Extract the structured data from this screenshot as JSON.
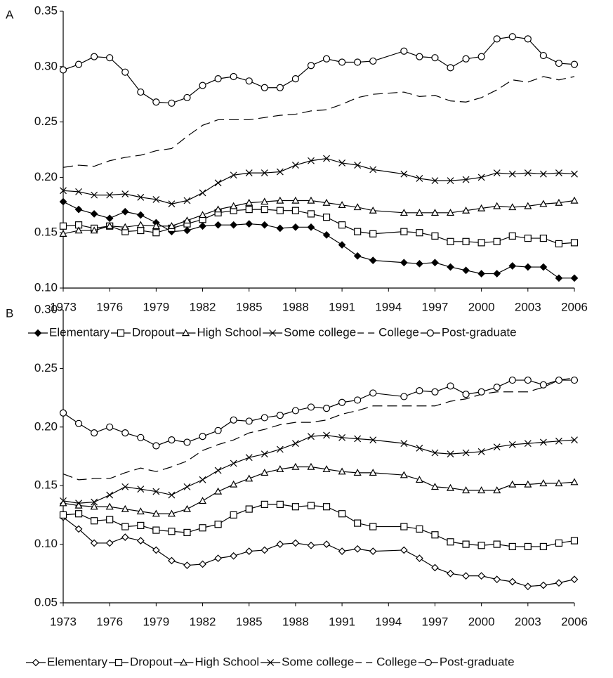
{
  "chart_data": [
    {
      "type": "line",
      "label": "A",
      "x": [
        1973,
        1974,
        1975,
        1976,
        1977,
        1978,
        1979,
        1980,
        1981,
        1982,
        1983,
        1984,
        1985,
        1986,
        1987,
        1988,
        1989,
        1990,
        1991,
        1992,
        1993,
        1995,
        1996,
        1997,
        1998,
        1999,
        2000,
        2001,
        2002,
        2003,
        2004,
        2005,
        2006
      ],
      "xlim": [
        1973,
        2006
      ],
      "xticks": [
        1973,
        1976,
        1979,
        1982,
        1985,
        1988,
        1991,
        1994,
        1997,
        2000,
        2003,
        2006
      ],
      "ylim": [
        0.1,
        0.35
      ],
      "yticks": [
        {
          "value": 0.1,
          "label": "0.10"
        },
        {
          "value": 0.15,
          "label": "0.15"
        },
        {
          "value": 0.2,
          "label": "0.20"
        },
        {
          "value": 0.25,
          "label": "0.25"
        },
        {
          "value": 0.3,
          "label": "0.30"
        },
        {
          "value": 0.35,
          "label": "0.35"
        }
      ],
      "grid": false,
      "legend": "bottom",
      "series": [
        {
          "name": "Elementary",
          "color": "#000000",
          "marker": "diamond-filled",
          "dash": "solid",
          "values": [
            0.178,
            0.171,
            0.167,
            0.163,
            0.169,
            0.166,
            0.159,
            0.151,
            0.152,
            0.156,
            0.157,
            0.157,
            0.158,
            0.157,
            0.154,
            0.155,
            0.155,
            0.148,
            0.139,
            0.129,
            0.125,
            0.123,
            0.122,
            0.123,
            0.119,
            0.116,
            0.113,
            0.113,
            0.12,
            0.119,
            0.119,
            0.109,
            0.109
          ]
        },
        {
          "name": "Dropout",
          "color": "#000000",
          "marker": "square",
          "dash": "solid",
          "values": [
            0.156,
            0.157,
            0.154,
            0.156,
            0.151,
            0.152,
            0.15,
            0.154,
            0.158,
            0.162,
            0.168,
            0.17,
            0.171,
            0.171,
            0.17,
            0.17,
            0.167,
            0.164,
            0.157,
            0.151,
            0.149,
            0.151,
            0.15,
            0.147,
            0.142,
            0.142,
            0.141,
            0.142,
            0.147,
            0.145,
            0.145,
            0.14,
            0.141
          ]
        },
        {
          "name": "High School",
          "color": "#000000",
          "marker": "triangle",
          "dash": "solid",
          "values": [
            0.149,
            0.152,
            0.152,
            0.156,
            0.155,
            0.157,
            0.156,
            0.156,
            0.161,
            0.166,
            0.171,
            0.174,
            0.177,
            0.178,
            0.179,
            0.179,
            0.179,
            0.177,
            0.175,
            0.173,
            0.17,
            0.168,
            0.168,
            0.168,
            0.168,
            0.17,
            0.172,
            0.174,
            0.173,
            0.174,
            0.176,
            0.177,
            0.179
          ]
        },
        {
          "name": "Some college",
          "color": "#000000",
          "marker": "x",
          "dash": "solid",
          "values": [
            0.188,
            0.187,
            0.184,
            0.184,
            0.185,
            0.182,
            0.18,
            0.176,
            0.179,
            0.186,
            0.195,
            0.202,
            0.204,
            0.204,
            0.205,
            0.211,
            0.215,
            0.217,
            0.213,
            0.211,
            0.207,
            0.203,
            0.199,
            0.197,
            0.197,
            0.198,
            0.2,
            0.204,
            0.203,
            0.204,
            0.203,
            0.204,
            0.203
          ]
        },
        {
          "name": "College",
          "color": "#000000",
          "marker": "none",
          "dash": "dashed",
          "values": [
            0.209,
            0.211,
            0.21,
            0.215,
            0.218,
            0.22,
            0.224,
            0.226,
            0.237,
            0.247,
            0.252,
            0.252,
            0.252,
            0.254,
            0.256,
            0.257,
            0.26,
            0.261,
            0.266,
            0.272,
            0.275,
            0.277,
            0.273,
            0.274,
            0.269,
            0.268,
            0.272,
            0.279,
            0.288,
            0.286,
            0.291,
            0.288,
            0.291
          ]
        },
        {
          "name": "Post-graduate",
          "color": "#000000",
          "marker": "circle",
          "dash": "solid",
          "values": [
            0.297,
            0.302,
            0.309,
            0.308,
            0.295,
            0.277,
            0.268,
            0.267,
            0.272,
            0.283,
            0.289,
            0.291,
            0.287,
            0.281,
            0.281,
            0.289,
            0.301,
            0.307,
            0.304,
            0.304,
            0.305,
            0.314,
            0.309,
            0.308,
            0.299,
            0.307,
            0.309,
            0.325,
            0.327,
            0.325,
            0.31,
            0.303,
            0.302
          ]
        }
      ]
    },
    {
      "type": "line",
      "label": "B",
      "x": [
        1973,
        1974,
        1975,
        1976,
        1977,
        1978,
        1979,
        1980,
        1981,
        1982,
        1983,
        1984,
        1985,
        1986,
        1987,
        1988,
        1989,
        1990,
        1991,
        1992,
        1993,
        1995,
        1996,
        1997,
        1998,
        1999,
        2000,
        2001,
        2002,
        2003,
        2004,
        2005,
        2006
      ],
      "xlim": [
        1973,
        2006
      ],
      "xticks": [
        1973,
        1976,
        1979,
        1982,
        1985,
        1988,
        1991,
        1994,
        1997,
        2000,
        2003,
        2006
      ],
      "ylim": [
        0.05,
        0.3
      ],
      "yticks": [
        {
          "value": 0.05,
          "label": "0.05"
        },
        {
          "value": 0.1,
          "label": "0.10"
        },
        {
          "value": 0.15,
          "label": "0.15"
        },
        {
          "value": 0.2,
          "label": "0.20"
        },
        {
          "value": 0.25,
          "label": "0.25"
        },
        {
          "value": 0.3,
          "label": "0.30"
        }
      ],
      "grid": false,
      "legend": "bottom",
      "series": [
        {
          "name": "Elementary",
          "color": "#000000",
          "marker": "diamond",
          "dash": "solid",
          "values": [
            0.123,
            0.113,
            0.101,
            0.101,
            0.106,
            0.103,
            0.095,
            0.086,
            0.082,
            0.083,
            0.088,
            0.09,
            0.094,
            0.095,
            0.1,
            0.101,
            0.099,
            0.1,
            0.094,
            0.096,
            0.094,
            0.095,
            0.088,
            0.08,
            0.075,
            0.073,
            0.073,
            0.07,
            0.068,
            0.064,
            0.065,
            0.067,
            0.07
          ]
        },
        {
          "name": "Dropout",
          "color": "#000000",
          "marker": "square",
          "dash": "solid",
          "values": [
            0.125,
            0.126,
            0.12,
            0.121,
            0.115,
            0.116,
            0.112,
            0.111,
            0.11,
            0.114,
            0.117,
            0.125,
            0.13,
            0.134,
            0.134,
            0.132,
            0.133,
            0.132,
            0.126,
            0.118,
            0.115,
            0.115,
            0.113,
            0.108,
            0.102,
            0.1,
            0.099,
            0.1,
            0.098,
            0.098,
            0.098,
            0.101,
            0.103
          ]
        },
        {
          "name": "High School",
          "color": "#000000",
          "marker": "triangle",
          "dash": "solid",
          "values": [
            0.135,
            0.133,
            0.132,
            0.132,
            0.13,
            0.128,
            0.126,
            0.126,
            0.13,
            0.137,
            0.145,
            0.151,
            0.156,
            0.161,
            0.164,
            0.166,
            0.166,
            0.164,
            0.162,
            0.161,
            0.161,
            0.159,
            0.155,
            0.149,
            0.148,
            0.146,
            0.146,
            0.146,
            0.151,
            0.151,
            0.152,
            0.152,
            0.153
          ]
        },
        {
          "name": "Some college",
          "color": "#000000",
          "marker": "x",
          "dash": "solid",
          "values": [
            0.137,
            0.135,
            0.136,
            0.142,
            0.149,
            0.147,
            0.145,
            0.142,
            0.149,
            0.155,
            0.163,
            0.169,
            0.174,
            0.177,
            0.181,
            0.186,
            0.192,
            0.193,
            0.191,
            0.19,
            0.189,
            0.186,
            0.182,
            0.178,
            0.177,
            0.178,
            0.179,
            0.183,
            0.185,
            0.186,
            0.187,
            0.188,
            0.189
          ]
        },
        {
          "name": "College",
          "color": "#000000",
          "marker": "none",
          "dash": "dashed",
          "values": [
            0.16,
            0.155,
            0.156,
            0.156,
            0.161,
            0.165,
            0.162,
            0.166,
            0.171,
            0.18,
            0.185,
            0.189,
            0.195,
            0.198,
            0.202,
            0.204,
            0.204,
            0.206,
            0.211,
            0.214,
            0.218,
            0.218,
            0.218,
            0.218,
            0.222,
            0.224,
            0.228,
            0.23,
            0.23,
            0.23,
            0.234,
            0.24,
            0.242
          ]
        },
        {
          "name": "Post-graduate",
          "color": "#000000",
          "marker": "circle",
          "dash": "solid",
          "values": [
            0.212,
            0.203,
            0.195,
            0.2,
            0.195,
            0.191,
            0.184,
            0.189,
            0.187,
            0.192,
            0.197,
            0.206,
            0.205,
            0.208,
            0.21,
            0.214,
            0.217,
            0.216,
            0.221,
            0.223,
            0.229,
            0.226,
            0.231,
            0.23,
            0.235,
            0.228,
            0.23,
            0.234,
            0.24,
            0.24,
            0.236,
            0.24,
            0.24
          ]
        }
      ]
    }
  ]
}
